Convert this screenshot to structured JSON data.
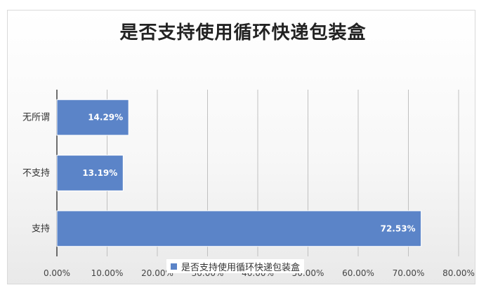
{
  "chart_data": {
    "type": "bar",
    "orientation": "horizontal",
    "title": "是否支持使用循环快递包装盒",
    "categories": [
      "无所谓",
      "不支持",
      "支持"
    ],
    "series": [
      {
        "name": "是否支持使用循环快递包装盒",
        "values": [
          14.29,
          13.19,
          72.53
        ],
        "data_labels": [
          "14.29%",
          "13.19%",
          "72.53%"
        ]
      }
    ],
    "xlim": [
      0,
      80
    ],
    "x_ticks": [
      "0.00%",
      "10.00%",
      "20.00%",
      "30.00%",
      "40.00%",
      "50.00%",
      "60.00%",
      "70.00%",
      "80.00%"
    ],
    "grid": true,
    "legend_position": "bottom",
    "bar_color": "#5b84c8"
  }
}
